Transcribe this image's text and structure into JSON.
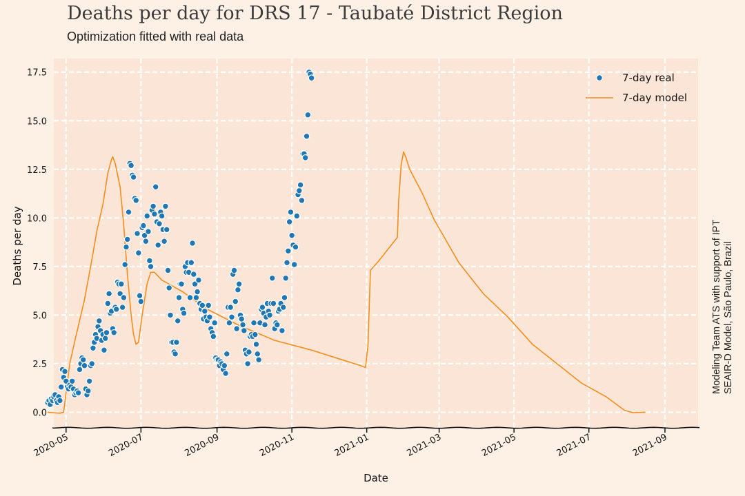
{
  "chart_data": {
    "type": "scatter",
    "title": "Deaths per day for DRS 17 - Taubaté District Region",
    "subtitle": "Optimization fitted with real data",
    "xlabel": "Date",
    "ylabel": "Deaths per day",
    "side_note_lines": [
      "Modeling Team ATS with support of IPT",
      "SEAIR-D Model, São Paulo, Brazil"
    ],
    "grid": true,
    "legend_position": "top-right",
    "x_axis": {
      "type": "date",
      "range_days": [
        -10,
        515
      ],
      "ticks": [
        {
          "label": "2020-05",
          "day": 0
        },
        {
          "label": "2020-07",
          "day": 61
        },
        {
          "label": "2020-09",
          "day": 123
        },
        {
          "label": "2020-11",
          "day": 184
        },
        {
          "label": "2021-01",
          "day": 245
        },
        {
          "label": "2021-03",
          "day": 304
        },
        {
          "label": "2021-05",
          "day": 365
        },
        {
          "label": "2021-07",
          "day": 426
        },
        {
          "label": "2021-09",
          "day": 488
        }
      ]
    },
    "y_axis": {
      "range": [
        -0.8,
        18.2
      ],
      "ticks": [
        0.0,
        2.5,
        5.0,
        7.5,
        10.0,
        12.5,
        15.0,
        17.5
      ],
      "tick_labels": [
        "0.0",
        "2.5",
        "5.0",
        "7.5",
        "10.0",
        "12.5",
        "15.0",
        "17.5"
      ]
    },
    "series": [
      {
        "name": "7-day real",
        "kind": "scatter",
        "color": "#1f77b4",
        "x_day_start": -15,
        "note": "one point per day starting at 2020-04-16",
        "values": [
          0.5,
          0.6,
          0.4,
          0.7,
          0.6,
          0.8,
          0.9,
          0.6,
          0.5,
          0.8,
          0.6,
          1.3,
          2.2,
          1.8,
          2.1,
          1.6,
          1.3,
          1.2,
          1.4,
          1.3,
          1.6,
          1.2,
          0.9,
          1.0,
          1.1,
          1.0,
          2.2,
          2.5,
          2.8,
          2.7,
          2.4,
          1.2,
          0.9,
          1.1,
          1.6,
          2.4,
          2.5,
          3.3,
          3.6,
          4.0,
          3.8,
          4.4,
          4.7,
          4.2,
          3.7,
          4.0,
          3.2,
          3.8,
          4.1,
          5.6,
          6.1,
          5.1,
          5.2,
          4.3,
          4.1,
          5.4,
          5.3,
          6.7,
          6.6,
          6.1,
          6.6,
          5.4,
          5.9,
          7.6,
          8.5,
          8.9,
          10.3,
          12.8,
          12.7,
          12.2,
          12.1,
          11.0,
          10.9,
          9.2,
          8.2,
          6.0,
          5.7,
          9.5,
          9.6,
          9.1,
          8.8,
          10.1,
          9.3,
          7.8,
          7.5,
          10.4,
          10.6,
          10.2,
          11.6,
          9.8,
          8.6,
          9.7,
          10.3,
          10.1,
          9.4,
          8.8,
          10.6,
          9.4,
          7.3,
          6.4,
          5.0,
          3.6,
          3.6,
          3.1,
          3.0,
          3.6,
          4.7,
          5.9,
          6.6,
          6.6,
          5.3,
          5.1,
          7.5,
          7.2,
          7.7,
          7.2,
          5.9,
          7.7,
          8.7,
          7.1,
          6.6,
          5.9,
          6.2,
          6.8,
          5.6,
          5.3,
          5.5,
          4.8,
          5.2,
          4.9,
          4.7,
          5.5,
          4.9,
          4.3,
          4.1,
          3.9,
          4.6,
          2.8,
          2.7,
          2.7,
          2.4,
          2.6,
          2.5,
          2.2,
          2.4,
          2.0,
          3.0,
          5.4,
          4.6,
          5.4,
          4.9,
          7.1,
          7.3,
          5.7,
          4.3,
          6.3,
          6.6,
          5.0,
          4.8,
          4.5,
          4.2,
          3.2,
          3.0,
          2.5,
          3.1,
          3.9,
          4.0,
          3.9,
          4.6,
          4.0,
          3.5,
          3.0,
          2.7,
          4.6,
          5.3,
          5.4,
          5.1,
          4.5,
          4.9,
          5.6,
          5.2,
          5.0,
          5.6,
          6.9,
          5.6,
          4.3,
          4.6,
          4.5,
          5.2,
          5.3,
          5.6,
          4.2,
          5.4,
          5.9,
          6.9,
          7.7,
          8.3,
          9.8,
          10.3,
          9.1,
          8.6,
          7.6,
          8.5,
          10.1,
          11.2,
          11.4,
          11.7,
          10.9,
          13.3,
          13.3,
          13.1,
          14.2,
          15.3,
          17.5,
          17.4,
          17.2
        ]
      },
      {
        "name": "7-day model",
        "kind": "line",
        "color": "#f28e1c",
        "points": [
          [
            -15,
            0.0
          ],
          [
            -5,
            -0.05
          ],
          [
            -2,
            0.0
          ],
          [
            0,
            1.0
          ],
          [
            3,
            2.5
          ],
          [
            8,
            3.9
          ],
          [
            15,
            5.8
          ],
          [
            20,
            7.5
          ],
          [
            25,
            9.3
          ],
          [
            30,
            10.7
          ],
          [
            34,
            12.3
          ],
          [
            37,
            13.0
          ],
          [
            38,
            13.15
          ],
          [
            40,
            12.8
          ],
          [
            44,
            11.6
          ],
          [
            47,
            9.6
          ],
          [
            50,
            7.1
          ],
          [
            53,
            5.0
          ],
          [
            55,
            4.0
          ],
          [
            57,
            3.5
          ],
          [
            59,
            3.6
          ],
          [
            62,
            5.0
          ],
          [
            66,
            6.6
          ],
          [
            69,
            7.2
          ],
          [
            72,
            7.2
          ],
          [
            78,
            6.8
          ],
          [
            95,
            6.2
          ],
          [
            115,
            5.3
          ],
          [
            140,
            4.5
          ],
          [
            170,
            3.7
          ],
          [
            200,
            3.2
          ],
          [
            225,
            2.7
          ],
          [
            240,
            2.4
          ],
          [
            244,
            2.3
          ],
          [
            246,
            3.4
          ],
          [
            248,
            7.3
          ],
          [
            255,
            7.8
          ],
          [
            265,
            8.6
          ],
          [
            270,
            9.0
          ],
          [
            271,
            10.9
          ],
          [
            273,
            12.7
          ],
          [
            275,
            13.4
          ],
          [
            277,
            13.1
          ],
          [
            280,
            12.5
          ],
          [
            290,
            11.3
          ],
          [
            300,
            9.9
          ],
          [
            320,
            7.7
          ],
          [
            340,
            6.1
          ],
          [
            360,
            4.9
          ],
          [
            380,
            3.5
          ],
          [
            400,
            2.5
          ],
          [
            420,
            1.5
          ],
          [
            440,
            0.8
          ],
          [
            455,
            0.1
          ],
          [
            462,
            -0.02
          ],
          [
            472,
            0.0
          ]
        ]
      }
    ]
  }
}
